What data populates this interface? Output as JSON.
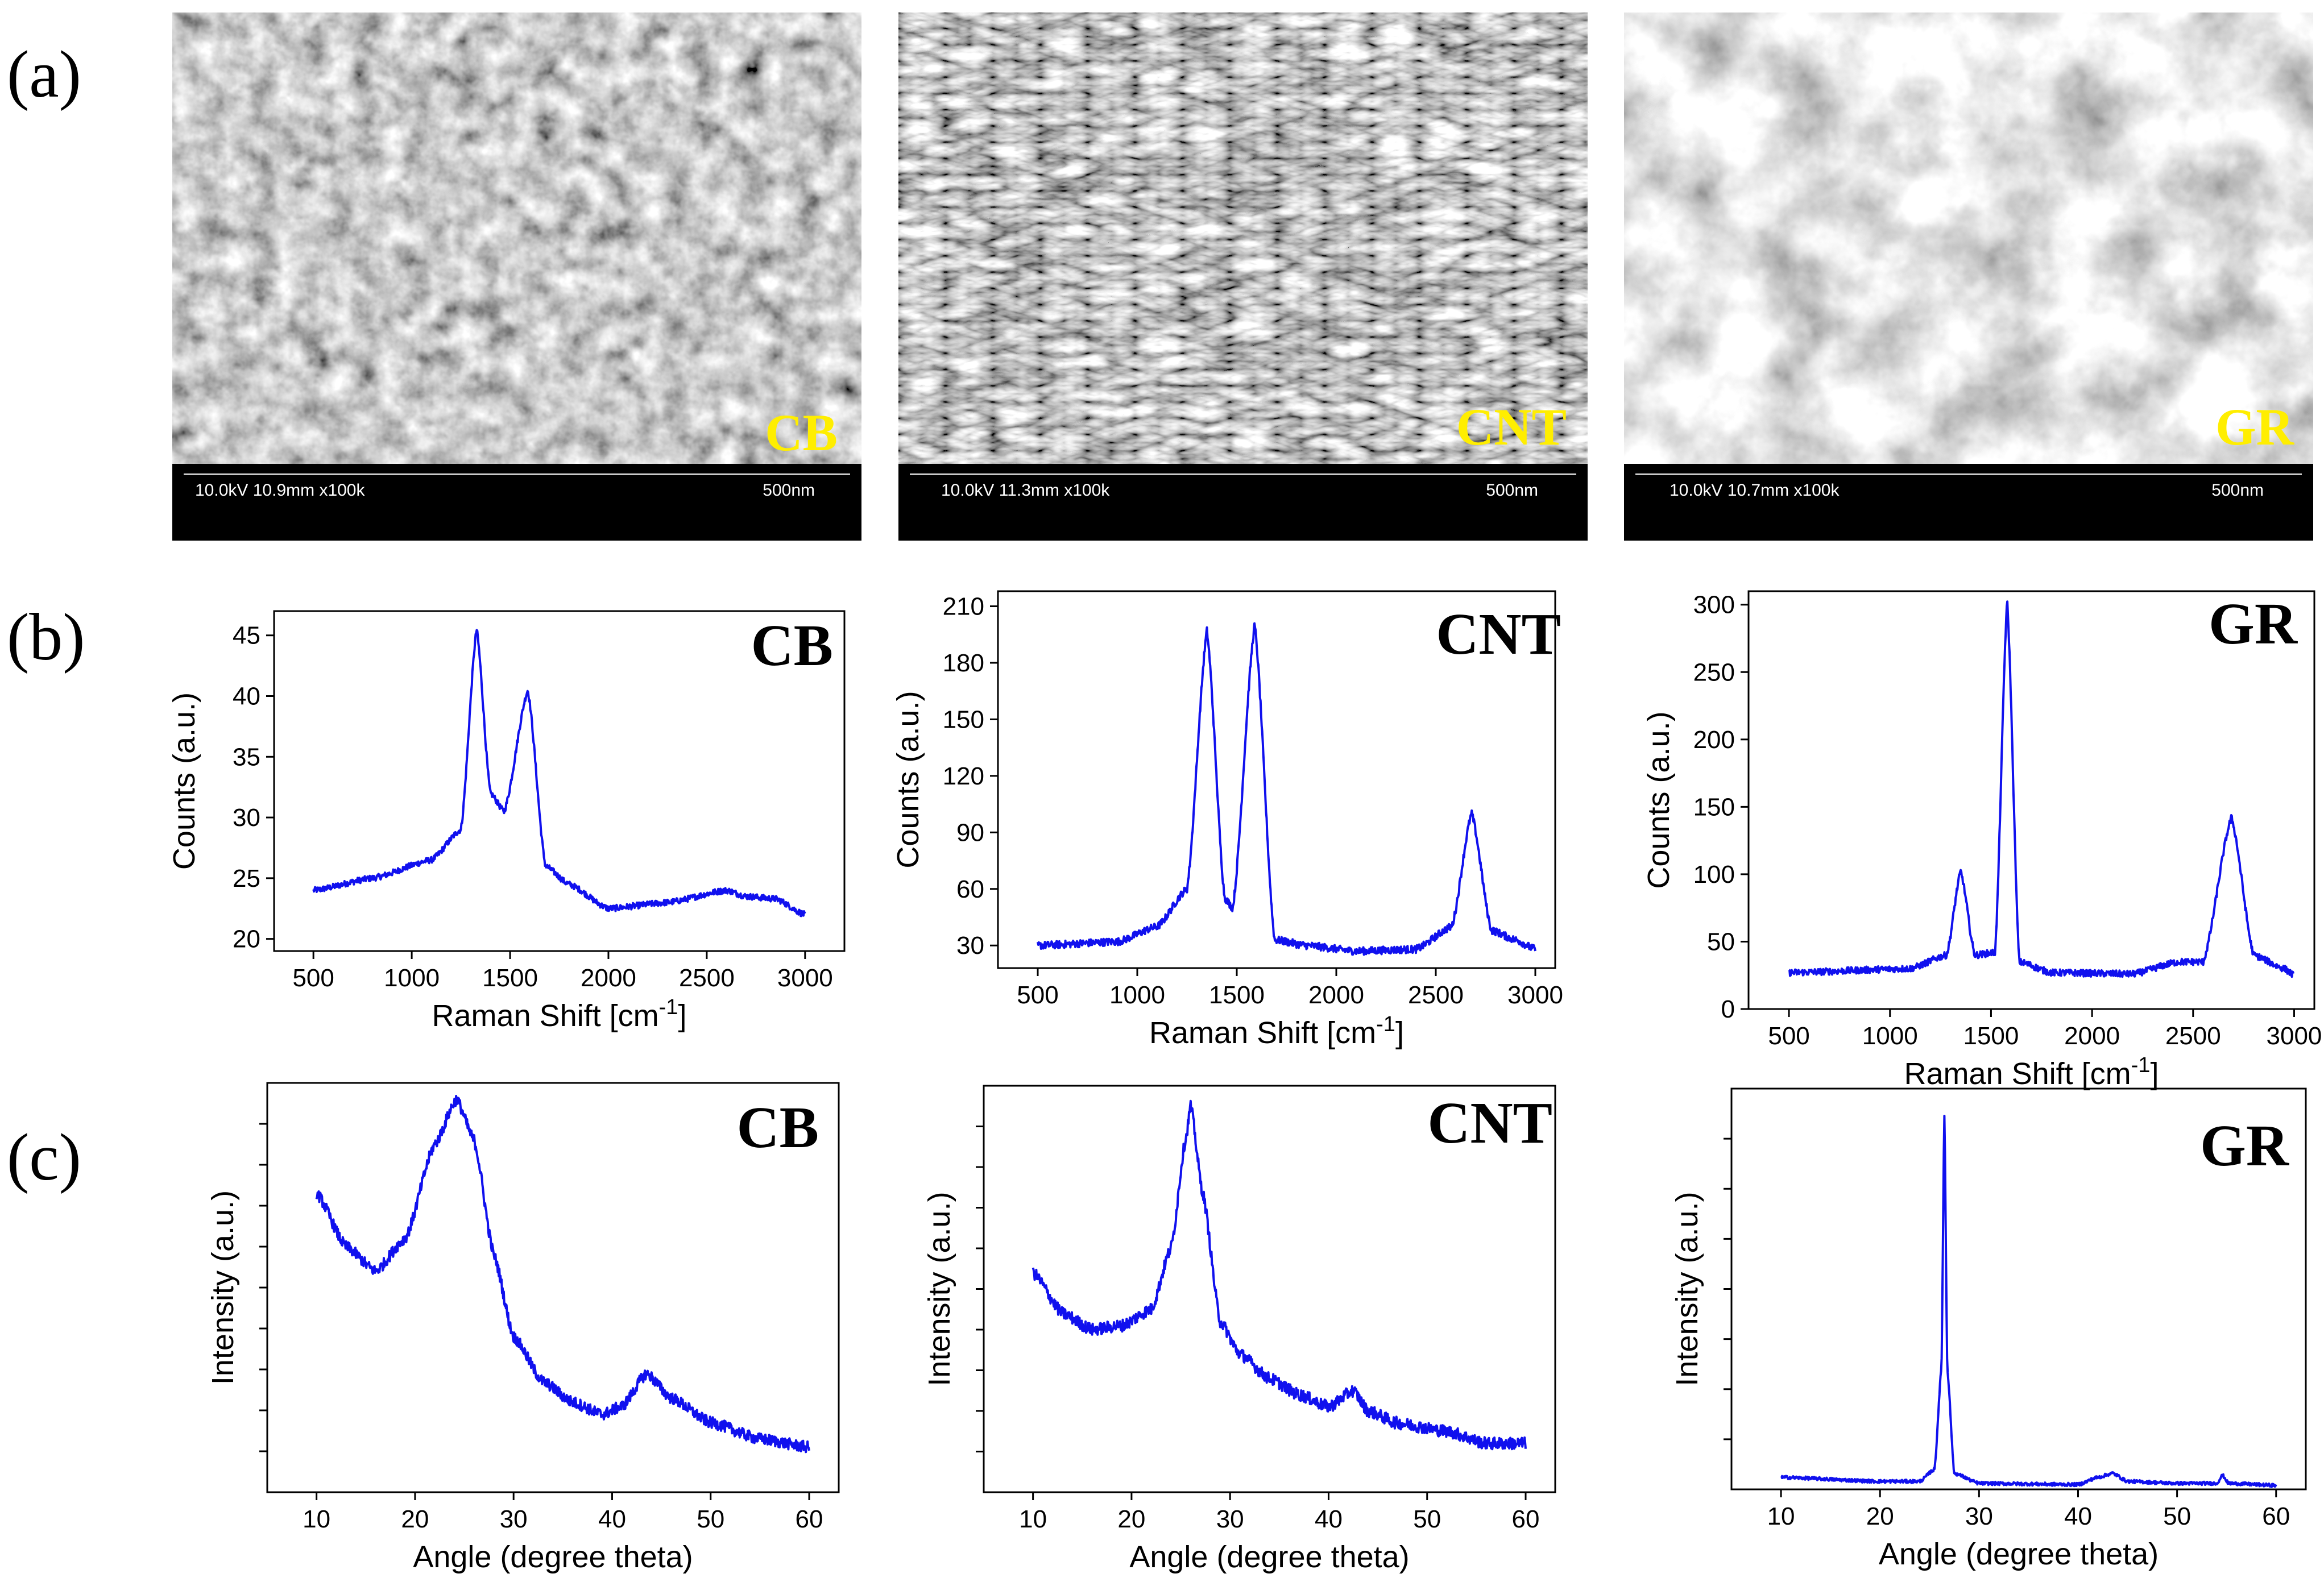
{
  "panel_labels": [
    "(a)",
    "(b)",
    "(c)"
  ],
  "sem_images": [
    {
      "tag": "CB",
      "info": "10.0kV 10.9mm x100k",
      "scale": "500nm",
      "texture": "particles"
    },
    {
      "tag": "CNT",
      "info": "10.0kV 11.3mm x100k",
      "scale": "500nm",
      "texture": "tubes"
    },
    {
      "tag": "GR",
      "info": "10.0kV 10.7mm x100k",
      "scale": "500nm",
      "texture": "flakes"
    }
  ],
  "colors": {
    "series": "#1010ee",
    "sem_tag": "#ffee00",
    "sem_bar": "#000000"
  },
  "chart_data": [
    {
      "id": "raman-cb",
      "type": "line",
      "tag": "CB",
      "xlabel": "Raman Shift [cm",
      "xlabel_sup": "-1",
      "xlabel_end": "]",
      "ylabel": "Counts (a.u.)",
      "xlim": [
        300,
        3200
      ],
      "ylim": [
        19,
        47
      ],
      "xticks": [
        500,
        1000,
        1500,
        2000,
        2500,
        3000
      ],
      "yticks": [
        20,
        25,
        30,
        35,
        40,
        45
      ],
      "baseline": [
        [
          500,
          24
        ],
        [
          800,
          25
        ],
        [
          1100,
          26.5
        ],
        [
          1250,
          29
        ],
        [
          1330,
          45.5
        ],
        [
          1400,
          32
        ],
        [
          1470,
          30.5
        ],
        [
          1590,
          40.5
        ],
        [
          1680,
          26
        ],
        [
          1800,
          24.5
        ],
        [
          2000,
          22.5
        ],
        [
          2300,
          23
        ],
        [
          2600,
          24
        ],
        [
          2700,
          23.5
        ],
        [
          2850,
          23.3
        ],
        [
          3000,
          22
        ]
      ],
      "noise": 0.9
    },
    {
      "id": "raman-cnt",
      "type": "line",
      "tag": "CNT",
      "xlabel": "Raman Shift [cm",
      "xlabel_sup": "-1",
      "xlabel_end": "]",
      "ylabel": "Counts (a.u.)",
      "xlim": [
        300,
        3100
      ],
      "ylim": [
        18,
        218
      ],
      "xticks": [
        500,
        1000,
        1500,
        2000,
        2500,
        3000
      ],
      "yticks": [
        30,
        60,
        90,
        120,
        150,
        180,
        210
      ],
      "baseline": [
        [
          500,
          30
        ],
        [
          900,
          32
        ],
        [
          1100,
          40
        ],
        [
          1250,
          60
        ],
        [
          1350,
          197
        ],
        [
          1440,
          55
        ],
        [
          1480,
          50
        ],
        [
          1590,
          200
        ],
        [
          1690,
          33
        ],
        [
          1850,
          30
        ],
        [
          2100,
          27
        ],
        [
          2400,
          28
        ],
        [
          2580,
          40
        ],
        [
          2680,
          100
        ],
        [
          2780,
          38
        ],
        [
          2900,
          33
        ],
        [
          3000,
          28
        ]
      ],
      "noise": 1.0
    },
    {
      "id": "raman-gr",
      "type": "line",
      "tag": "GR",
      "xlabel": "Raman Shift [cm",
      "xlabel_sup": "-1",
      "xlabel_end": "]",
      "ylabel": "Counts (a.u.)",
      "xlim": [
        300,
        3100
      ],
      "ylim": [
        0,
        310
      ],
      "xticks": [
        500,
        1000,
        1500,
        2000,
        2500,
        3000
      ],
      "yticks": [
        0,
        50,
        100,
        150,
        200,
        250,
        300
      ],
      "baseline": [
        [
          500,
          27
        ],
        [
          1100,
          30
        ],
        [
          1280,
          40
        ],
        [
          1350,
          102
        ],
        [
          1420,
          40
        ],
        [
          1520,
          42
        ],
        [
          1580,
          302
        ],
        [
          1640,
          35
        ],
        [
          1800,
          27
        ],
        [
          2200,
          26
        ],
        [
          2430,
          35
        ],
        [
          2550,
          35
        ],
        [
          2690,
          142
        ],
        [
          2800,
          40
        ],
        [
          2950,
          30
        ],
        [
          3000,
          25
        ]
      ],
      "noise": 0.8
    },
    {
      "id": "xrd-cb",
      "type": "line",
      "tag": "CB",
      "xlabel": "Angle (degree theta)",
      "ylabel": "Intensity (a.u.)",
      "xlim": [
        5,
        63
      ],
      "ylim": [
        0,
        100
      ],
      "xticks": [
        10,
        20,
        30,
        40,
        50,
        60
      ],
      "yticks_unlabeled": 9,
      "baseline": [
        [
          10,
          73
        ],
        [
          13,
          60
        ],
        [
          16,
          54
        ],
        [
          19,
          62
        ],
        [
          22,
          85
        ],
        [
          24.2,
          96
        ],
        [
          26,
          86
        ],
        [
          28,
          58
        ],
        [
          30,
          38
        ],
        [
          33,
          27
        ],
        [
          36,
          22
        ],
        [
          39,
          19
        ],
        [
          41,
          21
        ],
        [
          43.5,
          29
        ],
        [
          46,
          23
        ],
        [
          50,
          17
        ],
        [
          55,
          13
        ],
        [
          60,
          11
        ]
      ],
      "noise": 1.4
    },
    {
      "id": "xrd-cnt",
      "type": "line",
      "tag": "CNT",
      "xlabel": "Angle (degree theta)",
      "ylabel": "Intensity (a.u.)",
      "xlim": [
        5,
        63
      ],
      "ylim": [
        0,
        100
      ],
      "xticks": [
        10,
        20,
        30,
        40,
        50,
        60
      ],
      "yticks_unlabeled": 9,
      "baseline": [
        [
          10,
          54
        ],
        [
          13,
          44
        ],
        [
          16,
          40
        ],
        [
          19,
          41
        ],
        [
          22,
          45
        ],
        [
          24,
          60
        ],
        [
          25.5,
          87
        ],
        [
          26,
          95
        ],
        [
          27.2,
          74
        ],
        [
          29,
          42
        ],
        [
          31,
          34
        ],
        [
          34,
          28
        ],
        [
          37,
          24
        ],
        [
          40,
          21
        ],
        [
          42.5,
          25
        ],
        [
          44,
          20
        ],
        [
          47,
          17
        ],
        [
          52,
          15
        ],
        [
          56,
          12
        ],
        [
          60,
          12
        ]
      ],
      "noise": 1.5
    },
    {
      "id": "xrd-gr",
      "type": "line",
      "tag": "GR",
      "xlabel": "Angle (degree theta)",
      "ylabel": "Intensity (a.u.)",
      "xlim": [
        5,
        63
      ],
      "ylim": [
        0,
        100
      ],
      "xticks": [
        10,
        20,
        30,
        40,
        50,
        60
      ],
      "yticks_unlabeled": 7,
      "baseline": [
        [
          10,
          3
        ],
        [
          20,
          2
        ],
        [
          24,
          2
        ],
        [
          25.5,
          5
        ],
        [
          26.2,
          30
        ],
        [
          26.5,
          93
        ],
        [
          26.8,
          30
        ],
        [
          27.5,
          4
        ],
        [
          30,
          1.5
        ],
        [
          40,
          1.2
        ],
        [
          42,
          3
        ],
        [
          43.5,
          4
        ],
        [
          45,
          2
        ],
        [
          50,
          1.5
        ],
        [
          54,
          1.5
        ],
        [
          54.6,
          3.5
        ],
        [
          55.2,
          1.5
        ],
        [
          60,
          1
        ]
      ],
      "noise": 0.4
    }
  ]
}
